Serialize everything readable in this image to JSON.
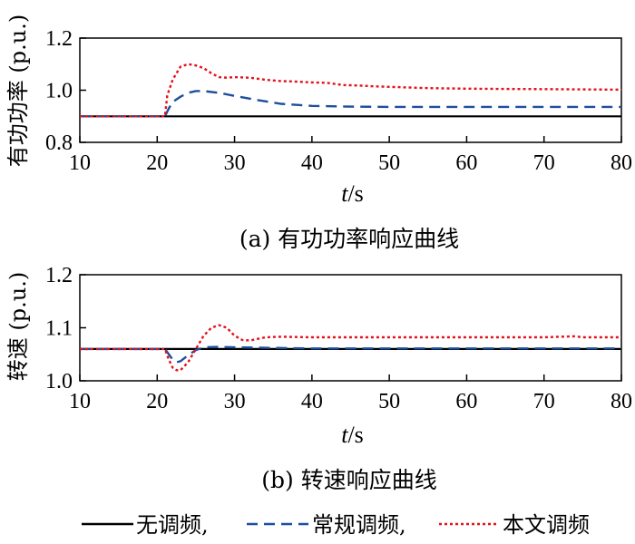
{
  "chart_data": [
    {
      "type": "line",
      "caption": "(a) 有功功率响应曲线",
      "ylabel": "有功功率 (p.u.)",
      "xlabel_italic": "t",
      "xlabel_unit": "/s",
      "xlim": [
        10,
        80
      ],
      "ylim": [
        0.8,
        1.2
      ],
      "xticks": [
        10,
        20,
        30,
        40,
        50,
        60,
        70,
        80
      ],
      "yticks": [
        "0.8",
        "1.0",
        "1.2"
      ],
      "series": [
        {
          "name": "无调频",
          "color": "#000000",
          "style": "solid",
          "x": [
            10,
            80
          ],
          "y": [
            0.9,
            0.9
          ]
        },
        {
          "name": "常规调频",
          "color": "#1f4e9c",
          "style": "dashed",
          "x": [
            10,
            21,
            21.5,
            22,
            23,
            24,
            25,
            26,
            28,
            30,
            33,
            36,
            40,
            45,
            50,
            60,
            70,
            80
          ],
          "y": [
            0.9,
            0.9,
            0.93,
            0.955,
            0.975,
            0.99,
            0.997,
            0.997,
            0.99,
            0.978,
            0.962,
            0.948,
            0.94,
            0.937,
            0.936,
            0.936,
            0.936,
            0.936
          ]
        },
        {
          "name": "本文调频",
          "color": "#e3121e",
          "style": "dotted",
          "x": [
            10,
            21,
            21.3,
            22,
            23,
            24,
            25,
            26,
            27,
            28,
            29,
            30,
            32,
            34,
            36,
            38,
            40,
            42,
            44,
            46,
            48,
            50,
            55,
            60,
            65,
            70,
            75,
            80
          ],
          "y": [
            0.9,
            0.9,
            0.98,
            1.04,
            1.09,
            1.1,
            1.095,
            1.085,
            1.065,
            1.05,
            1.048,
            1.05,
            1.048,
            1.04,
            1.035,
            1.033,
            1.03,
            1.028,
            1.02,
            1.018,
            1.015,
            1.013,
            1.008,
            1.006,
            1.005,
            1.004,
            1.003,
            1.002
          ]
        }
      ]
    },
    {
      "type": "line",
      "caption": "(b) 转速响应曲线",
      "ylabel": "转速 (p.u.)",
      "xlabel_italic": "t",
      "xlabel_unit": "/s",
      "xlim": [
        10,
        80
      ],
      "ylim": [
        1.0,
        1.2
      ],
      "xticks": [
        10,
        20,
        30,
        40,
        50,
        60,
        70,
        80
      ],
      "yticks": [
        "1.0",
        "1.1",
        "1.2"
      ],
      "series": [
        {
          "name": "无调频",
          "color": "#000000",
          "style": "solid",
          "x": [
            10,
            80
          ],
          "y": [
            1.06,
            1.06
          ]
        },
        {
          "name": "常规调频",
          "color": "#1f4e9c",
          "style": "dashed",
          "x": [
            10,
            21,
            21.5,
            22,
            22.5,
            23,
            24,
            25,
            26,
            28,
            30,
            35,
            40,
            80
          ],
          "y": [
            1.06,
            1.06,
            1.05,
            1.04,
            1.035,
            1.037,
            1.048,
            1.058,
            1.063,
            1.064,
            1.063,
            1.062,
            1.061,
            1.061
          ]
        },
        {
          "name": "本文调频",
          "color": "#e3121e",
          "style": "dotted",
          "x": [
            10,
            21,
            21.5,
            22,
            22.5,
            23,
            24,
            25,
            26,
            27,
            28,
            29,
            30,
            31,
            32,
            34,
            36,
            40,
            50,
            60,
            70,
            74,
            75,
            76,
            80
          ],
          "y": [
            1.06,
            1.06,
            1.04,
            1.025,
            1.02,
            1.02,
            1.035,
            1.06,
            1.085,
            1.1,
            1.105,
            1.1,
            1.085,
            1.077,
            1.076,
            1.082,
            1.083,
            1.082,
            1.082,
            1.082,
            1.082,
            1.084,
            1.082,
            1.082,
            1.082
          ]
        }
      ]
    }
  ],
  "legend": [
    {
      "label": "无调频,",
      "color": "#000000",
      "style": "solid"
    },
    {
      "label": "常规调频,",
      "color": "#1f4e9c",
      "style": "dashed"
    },
    {
      "label": "本文调频",
      "color": "#e3121e",
      "style": "dotted"
    }
  ]
}
